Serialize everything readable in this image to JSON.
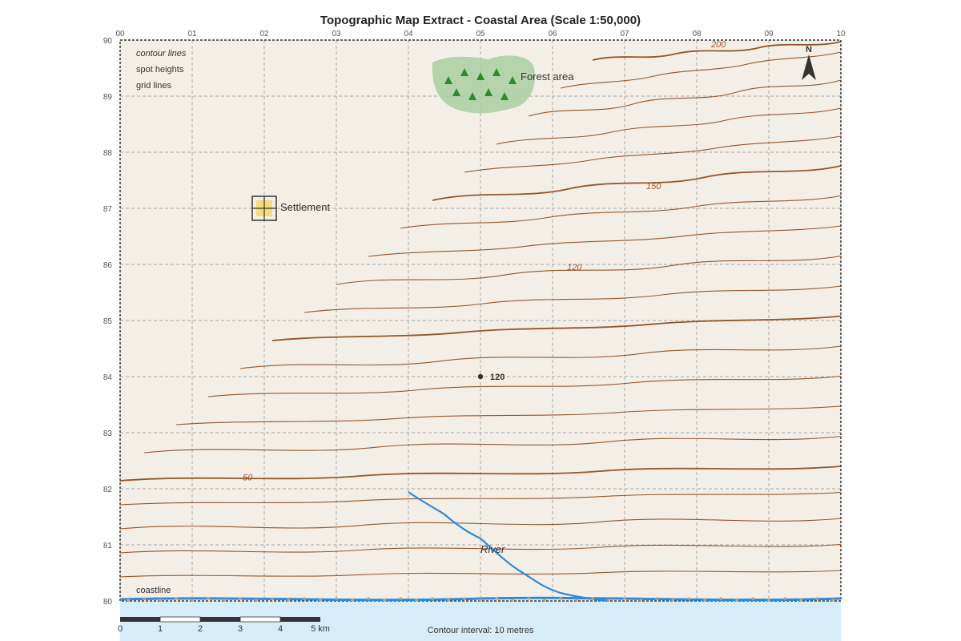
{
  "title": "Topographic Map Extract - Coastal Area (Scale 1:50,000)",
  "grid": {
    "eastings": [
      "00",
      "01",
      "02",
      "03",
      "04",
      "05",
      "06",
      "07",
      "08",
      "09",
      "10"
    ],
    "northings": [
      "90",
      "89",
      "88",
      "87",
      "86",
      "85",
      "84",
      "83",
      "82",
      "81",
      "80"
    ]
  },
  "legend": {
    "items": [
      "contour lines",
      "spot heights",
      "grid lines"
    ]
  },
  "features": {
    "forest_label": "Forest area",
    "settlement_label": "Settlement",
    "river_label": "River",
    "coastline_label": "coastline",
    "north_label": "N",
    "spot_height": {
      "value": "120",
      "easting": 5.0,
      "northing": 84.0
    }
  },
  "contour_labels": [
    {
      "text": "200",
      "easting": 8.2,
      "northing": 89.93
    },
    {
      "text": "150",
      "easting": 7.3,
      "northing": 87.4
    },
    {
      "text": "120",
      "easting": 6.2,
      "northing": 85.96
    },
    {
      "text": "50",
      "easting": 1.7,
      "northing": 82.21
    }
  ],
  "scale_bar": {
    "labels": [
      "0",
      "1",
      "2",
      "3",
      "4",
      "5 km"
    ]
  },
  "contour_interval": "Contour interval: 10 metres",
  "colors": {
    "land": "#f4efe6",
    "sea": "#d6ecf8",
    "contour": "#8b4513",
    "river": "#2e8bdc",
    "coast": "#2e8bdc",
    "forest": "#a9cfa0",
    "tree": "#2e8b2e",
    "settlement": "#f5d96a"
  }
}
